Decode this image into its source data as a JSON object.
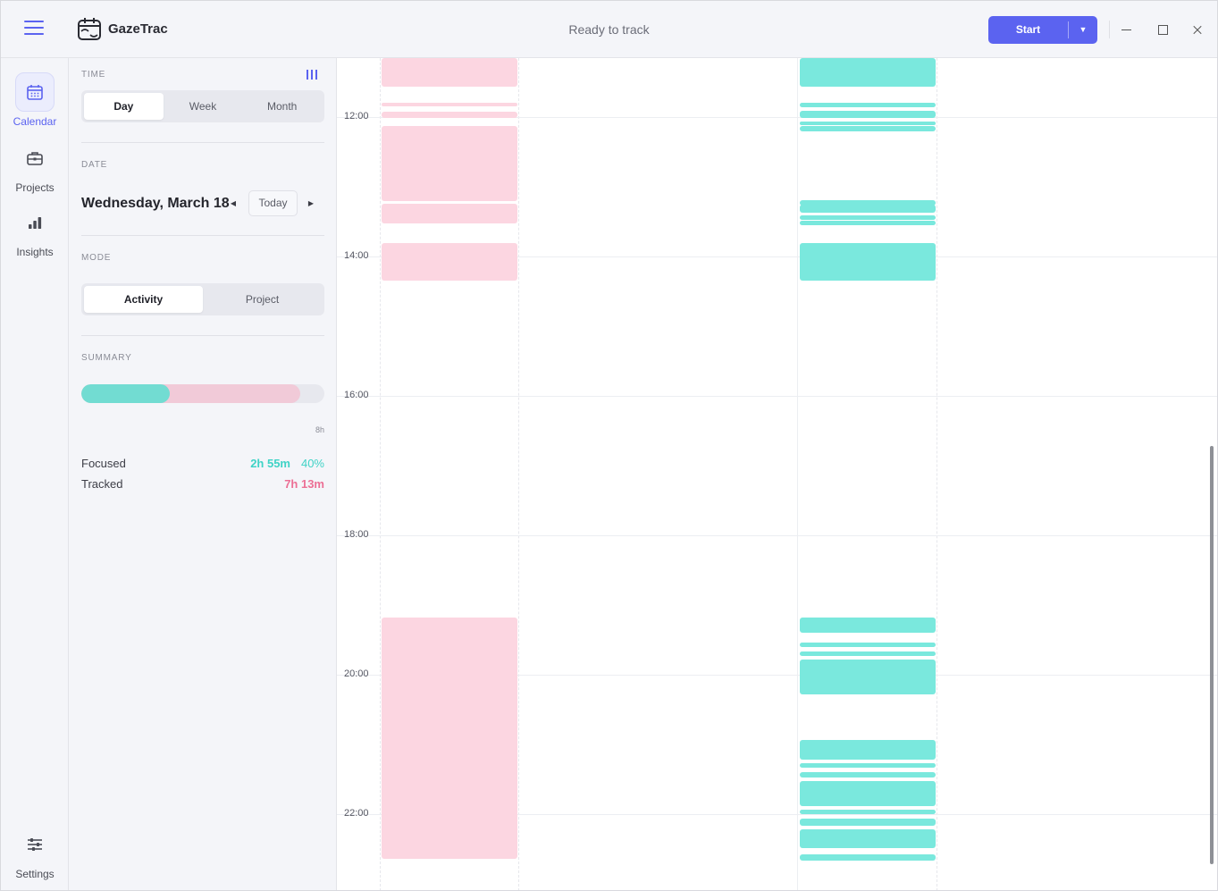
{
  "app": {
    "name": "GazeTrac",
    "status": "Ready to track"
  },
  "toolbar": {
    "start_label": "Start",
    "dropdown_arrow": "▼"
  },
  "nav": {
    "items": [
      {
        "label": "Calendar",
        "icon": "calendar-icon",
        "active": true
      },
      {
        "label": "Projects",
        "icon": "briefcase-icon",
        "active": false
      },
      {
        "label": "Insights",
        "icon": "bar-chart-icon",
        "active": false
      }
    ],
    "settings_label": "Settings"
  },
  "panel": {
    "time_label": "TIME",
    "time_tabs": [
      "Day",
      "Week",
      "Month"
    ],
    "date_label": "DATE",
    "date": "Wednesday, March 18",
    "prev_arrow": "◀",
    "next_arrow": "▶",
    "today_label": "Today",
    "mode_label": "MODE",
    "mode_tabs": [
      "Activity",
      "Project"
    ],
    "summary_label": "SUMMARY",
    "max_label": "8h",
    "focused_fraction": 0.365,
    "tracked_fraction": 0.902,
    "focused_label": "Focused",
    "focused_value": "2h 55m",
    "focused_pct": "40%",
    "tracked_label": "Tracked",
    "tracked_value": "7h 13m"
  },
  "calendar": {
    "hour_labels": [
      "12:00",
      "14:00",
      "16:00",
      "18:00",
      "20:00",
      "22:00"
    ],
    "colors": {
      "tracked": "#fcd6e1",
      "focused": "#7ae8dd",
      "accent": "#5b63f0"
    }
  }
}
